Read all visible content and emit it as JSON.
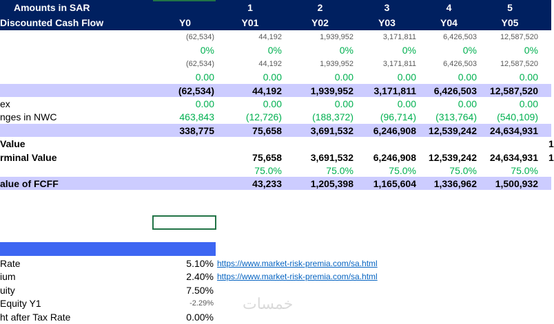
{
  "header": {
    "row1": {
      "label": "Amounts in SAR",
      "cells": [
        null,
        "1",
        "2",
        "3",
        "4",
        "5"
      ]
    },
    "row2": {
      "label": "Discounted Cash Flow",
      "cells": [
        "Y0",
        "Y01",
        "Y02",
        "Y03",
        "Y04",
        "Y05"
      ]
    }
  },
  "rows": [
    {
      "label": null,
      "cells": [
        "(62,534)",
        "44,192",
        "1,939,952",
        "3,171,811",
        "6,426,503",
        "12,587,520",
        null
      ]
    },
    {
      "label": null,
      "cells": [
        "0%",
        "0%",
        "0%",
        "0%",
        "0%",
        "0%",
        null
      ]
    },
    {
      "label": null,
      "cells": [
        "(62,534)",
        "44,192",
        "1,939,952",
        "3,171,811",
        "6,426,503",
        "12,587,520",
        null
      ]
    },
    {
      "label": null,
      "cells": [
        "0.00",
        "0.00",
        "0.00",
        "0.00",
        "0.00",
        "0.00",
        null
      ]
    },
    {
      "label": null,
      "cells": [
        "(62,534)",
        "44,192",
        "1,939,952",
        "3,171,811",
        "6,426,503",
        "12,587,520",
        null
      ]
    },
    {
      "label": "ex",
      "cells": [
        "0.00",
        "0.00",
        "0.00",
        "0.00",
        "0.00",
        "0.00",
        null
      ]
    },
    {
      "label": "nges in NWC",
      "cells": [
        "463,843",
        "(12,726)",
        "(188,372)",
        "(96,714)",
        "(313,764)",
        "(540,109)",
        null
      ]
    },
    {
      "label": null,
      "cells": [
        "338,775",
        "75,658",
        "3,691,532",
        "6,246,908",
        "12,539,242",
        "24,634,931",
        null
      ]
    },
    {
      "label": "Value",
      "cells": [
        null,
        null,
        null,
        null,
        null,
        null,
        "1"
      ]
    },
    {
      "label": "rminal Value",
      "cells": [
        null,
        "75,658",
        "3,691,532",
        "6,246,908",
        "12,539,242",
        "24,634,931",
        "1"
      ]
    },
    {
      "label": null,
      "cells": [
        null,
        "75.0%",
        "75.0%",
        "75.0%",
        "75.0%",
        "75.0%",
        null
      ]
    },
    {
      "label": "alue of FCFF",
      "cells": [
        null,
        "43,233",
        "1,205,398",
        "1,165,604",
        "1,336,962",
        "1,500,932",
        null
      ]
    }
  ],
  "assumptions": [
    {
      "label": "Rate",
      "value": "5.10%",
      "link": "https://www.market-risk-premia.com/sa.html"
    },
    {
      "label": "ium",
      "value": "2.40%",
      "link": "https://www.market-risk-premia.com/sa.html"
    },
    {
      "label": "uity",
      "value": "7.50%",
      "link": null
    },
    {
      "label": "Equity Y1",
      "value": "-2.29%",
      "link": null
    },
    {
      "label": "ht after Tax Rate",
      "value": "0.00%",
      "link": null
    }
  ],
  "watermark": "خمسات"
}
